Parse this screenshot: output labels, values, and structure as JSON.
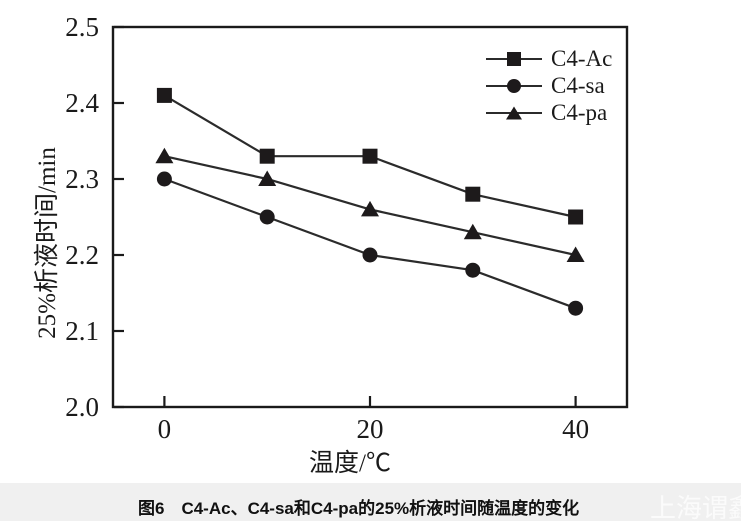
{
  "chart_data": {
    "type": "line",
    "x": [
      0,
      10,
      20,
      30,
      40
    ],
    "series": [
      {
        "name": "C4-Ac",
        "marker": "square",
        "values": [
          2.41,
          2.33,
          2.33,
          2.28,
          2.25
        ]
      },
      {
        "name": "C4-sa",
        "marker": "circle",
        "values": [
          2.3,
          2.25,
          2.2,
          2.18,
          2.13
        ]
      },
      {
        "name": "C4-pa",
        "marker": "triangle",
        "values": [
          2.33,
          2.3,
          2.26,
          2.23,
          2.2
        ]
      }
    ],
    "xlabel": "温度/℃",
    "ylabel": "25%析液时间/min",
    "xlim": [
      -5,
      45
    ],
    "ylim": [
      2.0,
      2.5
    ],
    "x_ticks": [
      0,
      20,
      40
    ],
    "y_ticks": [
      2.0,
      2.1,
      2.2,
      2.3,
      2.4,
      2.5
    ],
    "grid": false,
    "legend_position": "top-right-inside",
    "frame_color": "#1a1a1a",
    "line_color": "#2b2b2b",
    "marker_color": "#1d1a1b"
  },
  "caption": "图6　C4-Ac、C4-sa和C4-pa的25%析液时间随温度的变化",
  "watermark": "上海谓鑫",
  "colors": {
    "background": "#ffffff",
    "caption_bar": "#f0f0f0"
  }
}
